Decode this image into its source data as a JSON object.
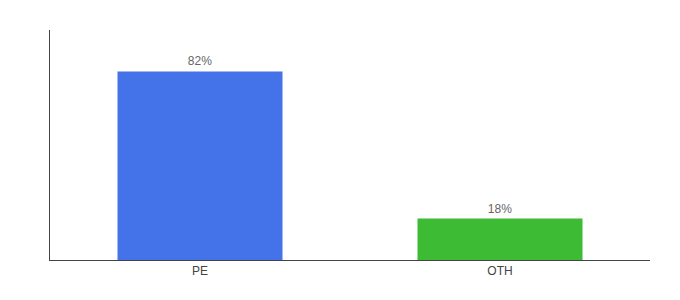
{
  "chart_data": {
    "type": "bar",
    "categories": [
      "PE",
      "OTH"
    ],
    "values": [
      82,
      18
    ],
    "value_labels": [
      "82%",
      "18%"
    ],
    "colors": [
      "#4472e8",
      "#3dbb35"
    ],
    "ylim": [
      0,
      100
    ],
    "grid": false,
    "tick_labels": "x"
  }
}
